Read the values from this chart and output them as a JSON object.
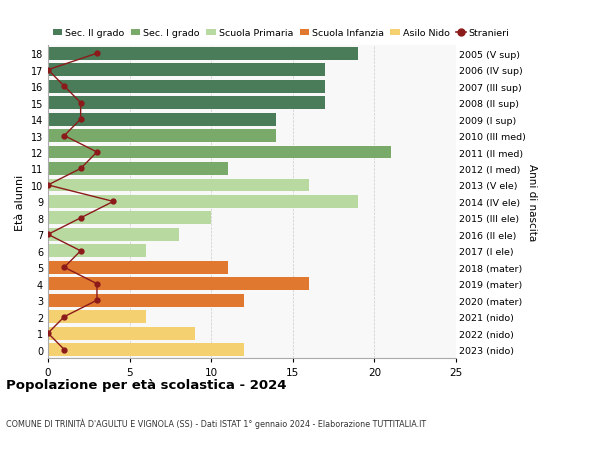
{
  "ages": [
    18,
    17,
    16,
    15,
    14,
    13,
    12,
    11,
    10,
    9,
    8,
    7,
    6,
    5,
    4,
    3,
    2,
    1,
    0
  ],
  "bar_values": [
    19,
    17,
    17,
    17,
    14,
    14,
    21,
    11,
    16,
    19,
    10,
    8,
    6,
    11,
    16,
    12,
    6,
    9,
    12
  ],
  "bar_colors": [
    "#4a7c59",
    "#4a7c59",
    "#4a7c59",
    "#4a7c59",
    "#4a7c59",
    "#7aaa6a",
    "#7aaa6a",
    "#7aaa6a",
    "#b8d9a0",
    "#b8d9a0",
    "#b8d9a0",
    "#b8d9a0",
    "#b8d9a0",
    "#e07830",
    "#e07830",
    "#e07830",
    "#f5d070",
    "#f5d070",
    "#f5d070"
  ],
  "right_labels": [
    "2005 (V sup)",
    "2006 (IV sup)",
    "2007 (III sup)",
    "2008 (II sup)",
    "2009 (I sup)",
    "2010 (III med)",
    "2011 (II med)",
    "2012 (I med)",
    "2013 (V ele)",
    "2014 (IV ele)",
    "2015 (III ele)",
    "2016 (II ele)",
    "2017 (I ele)",
    "2018 (mater)",
    "2019 (mater)",
    "2020 (mater)",
    "2021 (nido)",
    "2022 (nido)",
    "2023 (nido)"
  ],
  "stranieri_values": [
    3,
    0,
    1,
    2,
    2,
    1,
    3,
    2,
    0,
    4,
    2,
    0,
    2,
    1,
    3,
    3,
    1,
    0,
    1
  ],
  "stranieri_color": "#8b1a1a",
  "xlim": [
    0,
    25
  ],
  "title": "Popolazione per età scolastica - 2024",
  "subtitle": "COMUNE DI TRINITÀ D'AGULTU E VIGNOLA (SS) - Dati ISTAT 1° gennaio 2024 - Elaborazione TUTTITALIA.IT",
  "ylabel": "Età alunni",
  "right_ylabel": "Anni di nascita",
  "legend_items": [
    {
      "label": "Sec. II grado",
      "color": "#4a7c59"
    },
    {
      "label": "Sec. I grado",
      "color": "#7aaa6a"
    },
    {
      "label": "Scuola Primaria",
      "color": "#b8d9a0"
    },
    {
      "label": "Scuola Infanzia",
      "color": "#e07830"
    },
    {
      "label": "Asilo Nido",
      "color": "#f5d070"
    },
    {
      "label": "Stranieri",
      "color": "#8b1a1a"
    }
  ],
  "bg_color": "#ffffff",
  "grid_color": "#cccccc"
}
